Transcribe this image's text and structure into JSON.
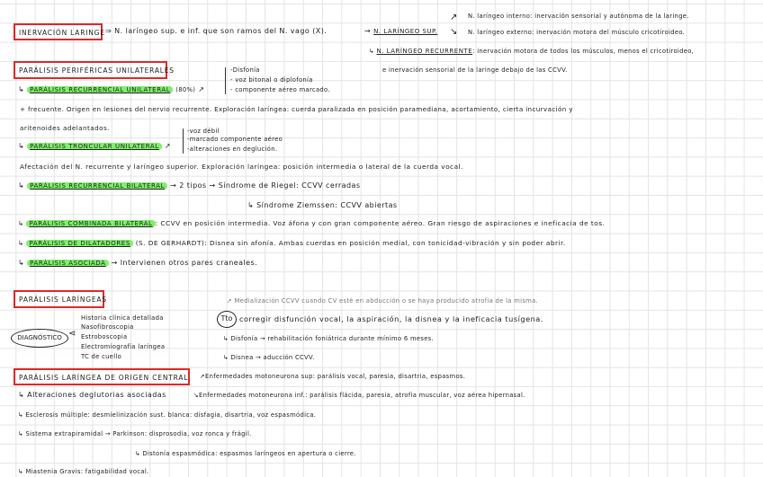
{
  "inervacion": {
    "title": "INERVACIÓN LARINGE",
    "text": "⇒ N. laríngeo sup. e inf. que son ramos del N. vago (X).",
    "sup_label": "N. LARÍNGEO SUP.",
    "sup_interno": "N. laríngeo interno: inervación sensorial y autónoma de la laringe.",
    "sup_externo": "N. laríngeo externo: inervación motora del músculo cricotiroideo.",
    "rec_label": "N. LARÍNGEO RECURRENTE",
    "rec_text": ": inervación motora de todos los músculos, menos el cricotiroideo,",
    "rec_text2": "e inervación sensorial de la laringe debajo de las CCVV."
  },
  "perifericas": {
    "title": "PARÁLISIS PERIFÉRICAS UNILATERALES",
    "recurrencial_uni": {
      "label": "PARÁLISIS RECURRENCIAL UNILATERAL",
      "pct": "(80%)",
      "symptoms": [
        "-Disfonía",
        "- voz bitonal o diplofonía",
        "- componente aéreo marcado."
      ],
      "text1": "+ frecuente. Origen en lesiones del nervio recurrente. Exploración laríngea: cuerda paralizada en posición paramediana, acortamiento, cierta incurvación y",
      "text2": "aritenoides adelantados."
    },
    "troncular": {
      "label": "PARÁLISIS TRONCULAR UNILATERAL",
      "symptoms": [
        "-voz débil",
        "-marcado componente aéreo",
        "-alteraciones en deglución."
      ],
      "text": "Afectación del N. recurrente y laríngeo superior. Exploración laríngea: posición intermedia o lateral de la cuerda vocal."
    },
    "recurrencial_bi": {
      "label": "PARÁLISIS RECURRENCIAL BILATERAL",
      "tipos": "→ 2 tipos →",
      "riegel": "Síndrome de Riegel: CCVV cerradas",
      "ziemssen": "Síndrome Ziemssen: CCVV abiertas"
    },
    "combinada": {
      "label": "PARÁLISIS COMBINADA BILATERAL",
      "text": ": CCVV en posición intermedia. Voz áfona y con gran componente aéreo. Gran riesgo de aspiraciones e ineficacia de tos."
    },
    "dilatadores": {
      "label": "PARÁLISIS DE DILATADORES",
      "text": "(S. DE GERHARDT): Disnea sin afonía. Ambas cuerdas en posición medial, con tonicidad-vibración y sin poder abrir."
    },
    "asociada": {
      "label": "PARÁLISIS ASOCIADA",
      "text": "→ Intervienen otros pares craneales."
    }
  },
  "laringeas": {
    "title": "PARÁLISIS LARÍNGEAS",
    "diagnostico": "DIAGNÓSTICO",
    "diag_items": [
      "Historia clínica detallada",
      "Nasofibroscopia",
      "Estroboscopia",
      "Electromiografía laríngea",
      "TC de cuello"
    ],
    "tto": "Tto",
    "medializacion": "Medialización CCVV cuando CV esté en abducción o se haya producido atrofia de la misma.",
    "tto_text": "corregir disfunción vocal, la aspiración, la disnea y la ineficacia tusígena.",
    "disfonia": "↳ Disfonía → rehabilitación foniátrica durante mínimo 6 meses.",
    "disnea": "↳ Disnea → aducción CCVV."
  },
  "central": {
    "title": "PARÁLISIS LARÍNGEA DE ORIGEN CENTRAL",
    "alteraciones": "↳ Alteraciones deglutorias asociadas",
    "mn_sup": "Enfermedades motoneurona sup: parálisis vocal, paresia, disartria, espasmos.",
    "mn_inf": "Enfermedades motoneurona inf.: parálisis flácida, paresia, atrofia muscular, voz aérea hipernasal.",
    "esclerosis": "↳ Esclerosis múltiple: desmielinización sust. blanca: disfagia, disartria, voz espasmódica.",
    "extrapiramidal": "↳ Sistema extrapiramidal → Parkinson: disprosodia, voz ronca y frágil.",
    "distonia": "↳ Distonía espasmódica: espasmos laríngeos en apertura o cierre.",
    "miastenia": "↳ Miastenia Gravis: fatigabilidad vocal."
  },
  "colors": {
    "box": "#e0282a",
    "highlight": "#7ef06a"
  }
}
